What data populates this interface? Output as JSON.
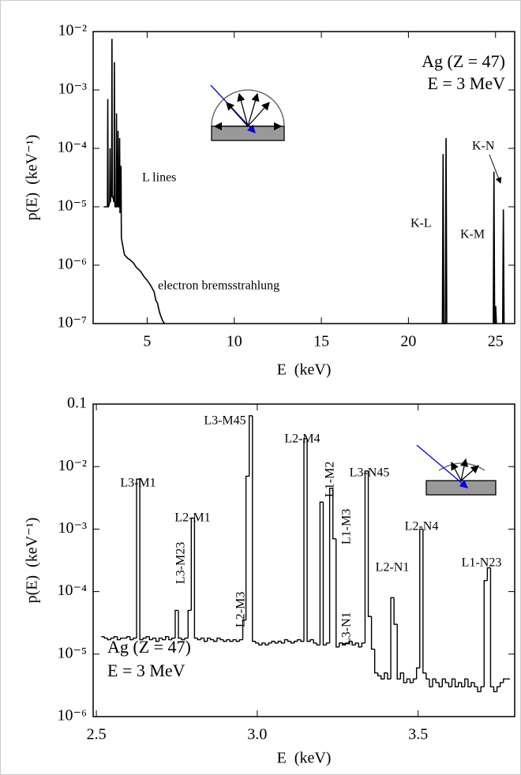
{
  "chart_data": [
    {
      "type": "line",
      "yscale": "log",
      "color": "#000000",
      "xlabel": "E  (keV)",
      "ylabel": "p(E)  (keV⁻¹)",
      "xlim": [
        1.9,
        26.1
      ],
      "ylim": [
        1e-07,
        0.01
      ],
      "xticks": [
        5,
        10,
        15,
        20,
        25
      ],
      "yticks": [
        {
          "value": 1e-07,
          "label": "10⁻⁷"
        },
        {
          "value": 1e-06,
          "label": "10⁻⁶"
        },
        {
          "value": 1e-05,
          "label": "10⁻⁵"
        },
        {
          "value": 0.0001,
          "label": "10⁻⁴"
        },
        {
          "value": 0.001,
          "label": "10⁻³"
        },
        {
          "value": 0.01,
          "label": "10⁻²"
        }
      ],
      "annotations": [
        "Ag (Z = 47)",
        "E = 3 MeV",
        "L lines",
        "electron bremsstrahlung",
        "K-L",
        "K-M",
        "K-N"
      ],
      "x": [
        2.5,
        2.72,
        2.74,
        2.76,
        2.78,
        2.85,
        2.87,
        2.89,
        2.91,
        2.96,
        2.98,
        3.0,
        3.02,
        3.1,
        3.12,
        3.14,
        3.16,
        3.22,
        3.24,
        3.26,
        3.31,
        3.33,
        3.35,
        3.4,
        3.42,
        3.44,
        3.48,
        3.5,
        3.52,
        3.56,
        3.62,
        3.7,
        3.8,
        3.9,
        4.0,
        4.2,
        4.4,
        4.6,
        4.8,
        5.0,
        5.2,
        5.4,
        5.5,
        5.6,
        5.7,
        5.8,
        5.9,
        6.0,
        6.1,
        21.95,
        21.99,
        22.03,
        22.12,
        22.16,
        22.2,
        23,
        24.87,
        24.91,
        24.95,
        24.97,
        25.01,
        25.05,
        25.2,
        25.41,
        25.45,
        25.49
      ],
      "values": [
        1e-05,
        1e-05,
        0.0007,
        1e-05,
        1e-05,
        1.2e-05,
        0.0001,
        1.2e-05,
        1.5e-05,
        1.5e-05,
        0.0075,
        1.5e-05,
        1.5e-05,
        1.2e-05,
        0.003,
        1.2e-05,
        1e-05,
        1e-05,
        0.0004,
        1e-05,
        1e-05,
        0.0002,
        1e-05,
        1e-05,
        0.00015,
        8e-06,
        8e-06,
        5e-05,
        3e-06,
        2.5e-06,
        2e-06,
        1.5e-06,
        1.4e-06,
        1.3e-06,
        1.25e-06,
        1.1e-06,
        9e-07,
        8e-07,
        6.5e-07,
        5.5e-07,
        4.5e-07,
        3.5e-07,
        2.5e-07,
        2.2e-07,
        1.6e-07,
        1.3e-07,
        1.1e-07,
        1e-07,
        null,
        1e-07,
        8e-05,
        1e-07,
        1e-07,
        0.00015,
        1e-07,
        null,
        1e-07,
        4e-05,
        1e-07,
        1e-07,
        2e-07,
        1e-07,
        null,
        1e-07,
        9e-06,
        1e-07
      ]
    },
    {
      "type": "step",
      "yscale": "log",
      "color": "#000000",
      "xlabel": "E  (keV)",
      "ylabel": "p(E)  (keV⁻¹)",
      "xlim": [
        2.49,
        3.8
      ],
      "ylim": [
        1e-06,
        0.1
      ],
      "xticks": [
        2.5,
        {
          "value": 3,
          "label": "3.0"
        },
        3.5
      ],
      "yticks": [
        {
          "value": 1e-06,
          "label": "10⁻⁶"
        },
        {
          "value": 1e-05,
          "label": "10⁻⁵"
        },
        {
          "value": 0.0001,
          "label": "10⁻⁴"
        },
        {
          "value": 0.001,
          "label": "10⁻³"
        },
        {
          "value": 0.01,
          "label": "10⁻²"
        },
        0.1
      ],
      "annotations": [
        "L3-M1",
        "L2-M1",
        "L3-M23",
        "L2-M3",
        "L3-M45",
        "L2-M4",
        "L1-M2",
        "L1-M3",
        "L3-N1",
        "L3-N45",
        "L2-N1",
        "L2-N4",
        "L1-N23",
        "Ag (Z = 47)",
        "E = 3 MeV"
      ],
      "x": [
        2.52,
        2.53,
        2.54,
        2.55,
        2.56,
        2.57,
        2.58,
        2.59,
        2.6,
        2.61,
        2.62,
        2.63,
        2.64,
        2.65,
        2.66,
        2.67,
        2.68,
        2.69,
        2.7,
        2.71,
        2.72,
        2.73,
        2.74,
        2.75,
        2.76,
        2.77,
        2.78,
        2.79,
        2.8,
        2.81,
        2.82,
        2.83,
        2.84,
        2.85,
        2.86,
        2.87,
        2.88,
        2.89,
        2.9,
        2.91,
        2.92,
        2.93,
        2.94,
        2.95,
        2.96,
        2.97,
        2.98,
        2.99,
        3.0,
        3.01,
        3.02,
        3.03,
        3.04,
        3.05,
        3.06,
        3.07,
        3.08,
        3.09,
        3.1,
        3.11,
        3.12,
        3.13,
        3.14,
        3.15,
        3.16,
        3.17,
        3.18,
        3.19,
        3.2,
        3.21,
        3.22,
        3.23,
        3.24,
        3.25,
        3.26,
        3.27,
        3.28,
        3.29,
        3.3,
        3.31,
        3.32,
        3.33,
        3.34,
        3.35,
        3.36,
        3.37,
        3.38,
        3.39,
        3.4,
        3.41,
        3.42,
        3.43,
        3.44,
        3.45,
        3.46,
        3.47,
        3.48,
        3.49,
        3.5,
        3.51,
        3.52,
        3.53,
        3.54,
        3.55,
        3.56,
        3.57,
        3.58,
        3.59,
        3.6,
        3.61,
        3.62,
        3.63,
        3.64,
        3.65,
        3.66,
        3.67,
        3.68,
        3.69,
        3.7,
        3.71,
        3.72,
        3.73,
        3.74,
        3.75,
        3.76,
        3.77,
        3.78
      ],
      "values": [
        1.9e-05,
        1.8e-05,
        1.7e-05,
        1.8e-05,
        1.9e-05,
        1.7e-05,
        1.8e-05,
        1.8e-05,
        1.9e-05,
        1.7e-05,
        1.8e-05,
        0.0063,
        1.7e-05,
        1.8e-05,
        1.9e-05,
        1.7e-05,
        1.8e-05,
        1.6e-05,
        1.8e-05,
        1.7e-05,
        1.9e-05,
        1.7e-05,
        1.8e-05,
        5e-05,
        1.8e-05,
        1.7e-05,
        1.8e-05,
        5e-05,
        0.0015,
        1.8e-05,
        1.7e-05,
        1.8e-05,
        1.6e-05,
        1.8e-05,
        1.7e-05,
        1.6e-05,
        1.8e-05,
        1.7e-05,
        1.6e-05,
        1.7e-05,
        1.6e-05,
        1.7e-05,
        1.6e-05,
        1.7e-05,
        3.5e-05,
        0.007,
        0.065,
        1.6e-05,
        1.5e-05,
        1.4e-05,
        1.5e-05,
        1.4e-05,
        1.5e-05,
        1.6e-05,
        1.5e-05,
        1.6e-05,
        1.5e-05,
        1.7e-05,
        1.6e-05,
        1.5e-05,
        1.6e-05,
        1.7e-05,
        1.6e-05,
        0.028,
        1.6e-05,
        1.7e-05,
        1.5e-05,
        1.4e-05,
        0.0027,
        1.4e-05,
        1.5e-05,
        0.0045,
        0.0007,
        1.3e-05,
        1.5e-05,
        1.4e-05,
        1.5e-05,
        1.6e-05,
        1.4e-05,
        1.5e-05,
        1.3e-05,
        1.5e-05,
        0.0085,
        4e-05,
        1.2e-05,
        5e-06,
        4.5e-06,
        4e-06,
        5e-06,
        4e-06,
        8e-05,
        3e-05,
        4e-06,
        5e-06,
        3.5e-06,
        4e-06,
        3.5e-06,
        4e-06,
        6e-06,
        0.001,
        5e-06,
        4e-06,
        3e-06,
        4e-06,
        3.5e-06,
        3e-06,
        4e-06,
        3.5e-06,
        3e-06,
        4e-06,
        3e-06,
        3.5e-06,
        3e-06,
        4e-06,
        3e-06,
        3.5e-06,
        3e-06,
        2.5e-06,
        3e-06,
        0.00015,
        0.00024,
        3e-06,
        2.5e-06,
        3e-06,
        3.5e-06,
        4e-06,
        4e-06
      ]
    }
  ]
}
